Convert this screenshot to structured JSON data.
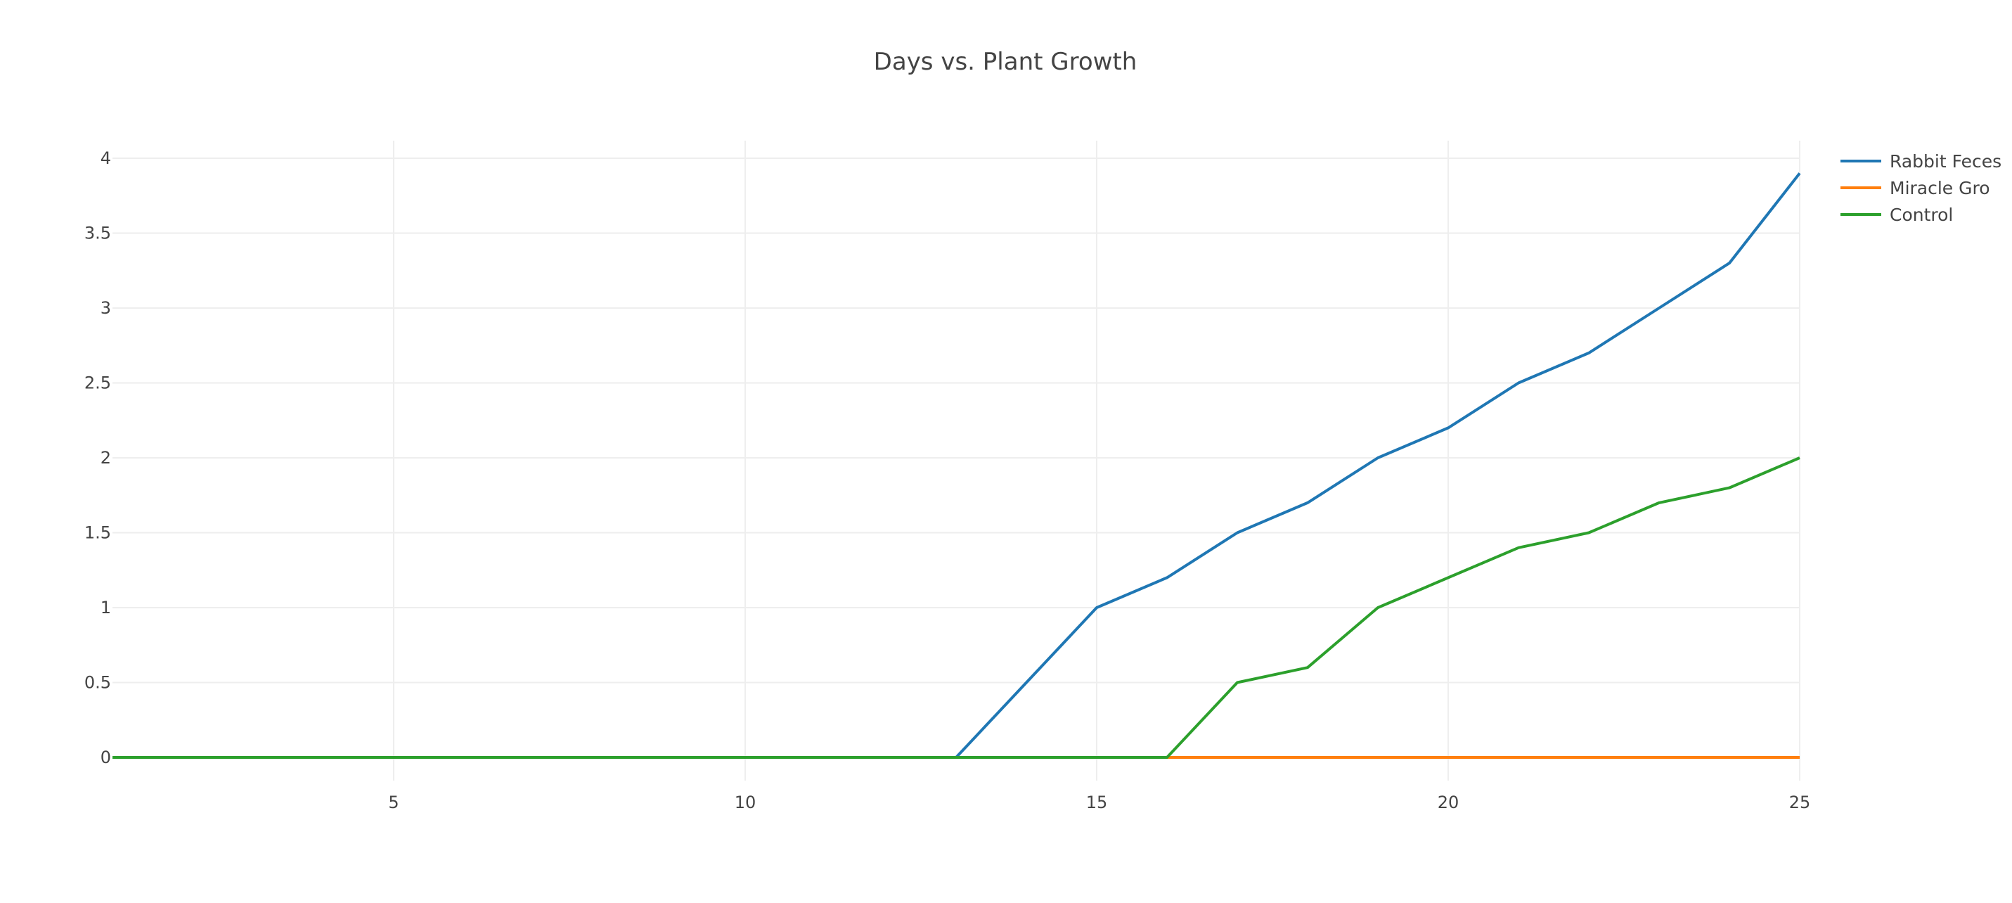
{
  "chart_data": {
    "type": "line",
    "title": "Days vs. Plant Growth",
    "xlabel": "",
    "ylabel": "",
    "xlim": [
      1,
      25
    ],
    "ylim": [
      -0.2,
      4.12
    ],
    "x_ticks": [
      5,
      10,
      15,
      20,
      25
    ],
    "y_ticks": [
      0,
      0.5,
      1,
      1.5,
      2,
      2.5,
      3,
      3.5,
      4
    ],
    "x_tick_labels": [
      "5",
      "10",
      "15",
      "20",
      "25"
    ],
    "y_tick_labels": [
      "0",
      "0.5",
      "1",
      "1.5",
      "2",
      "2.5",
      "3",
      "3.5",
      "4"
    ],
    "grid": true,
    "legend_position": "top-right",
    "x": [
      1,
      2,
      3,
      4,
      5,
      6,
      7,
      8,
      9,
      10,
      11,
      12,
      13,
      14,
      15,
      16,
      17,
      18,
      19,
      20,
      21,
      22,
      23,
      24,
      25
    ],
    "series": [
      {
        "name": "Rabbit Feces",
        "color": "#1f77b4",
        "values": [
          0,
          0,
          0,
          0,
          0,
          0,
          0,
          0,
          0,
          0,
          0,
          0,
          0,
          0.5,
          1.0,
          1.2,
          1.5,
          1.7,
          2.0,
          2.2,
          2.5,
          2.7,
          3.0,
          3.3,
          3.9
        ]
      },
      {
        "name": "Miracle Gro",
        "color": "#ff7f0e",
        "values": [
          0,
          0,
          0,
          0,
          0,
          0,
          0,
          0,
          0,
          0,
          0,
          0,
          0,
          0,
          0,
          0,
          0,
          0,
          0,
          0,
          0,
          0,
          0,
          0,
          0
        ]
      },
      {
        "name": "Control",
        "color": "#2ca02c",
        "values": [
          0,
          0,
          0,
          0,
          0,
          0,
          0,
          0,
          0,
          0,
          0,
          0,
          0,
          0,
          0,
          0,
          0.5,
          0.6,
          1.0,
          1.2,
          1.4,
          1.5,
          1.7,
          1.8,
          2.0
        ]
      }
    ]
  }
}
